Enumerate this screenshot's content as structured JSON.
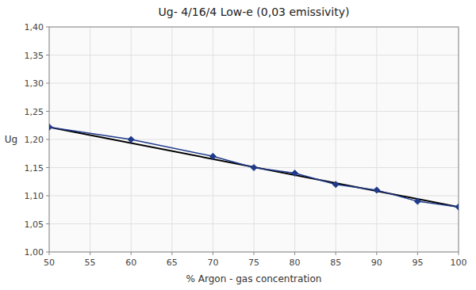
{
  "chart_data": {
    "type": "line",
    "title": "Ug- 4/16/4 Low-e (0,03 emissivity)",
    "xlabel": "% Argon - gas concentration",
    "ylabel": "Ug",
    "xlim": [
      50,
      100
    ],
    "ylim": [
      1.0,
      1.4
    ],
    "xticks": [
      50,
      55,
      60,
      65,
      70,
      75,
      80,
      85,
      90,
      95,
      100
    ],
    "yticks": [
      {
        "value": 1.0,
        "label": "1,00"
      },
      {
        "value": 1.05,
        "label": "1,05"
      },
      {
        "value": 1.1,
        "label": "1,10"
      },
      {
        "value": 1.15,
        "label": "1,15"
      },
      {
        "value": 1.2,
        "label": "1,20"
      },
      {
        "value": 1.25,
        "label": "1,25"
      },
      {
        "value": 1.3,
        "label": "1,30"
      },
      {
        "value": 1.35,
        "label": "1,35"
      },
      {
        "value": 1.4,
        "label": "1,40"
      }
    ],
    "grid": true,
    "series": [
      {
        "x": [
          50,
          60,
          70,
          75,
          80,
          85,
          90,
          95,
          100
        ],
        "values": [
          1.222,
          1.2,
          1.17,
          1.15,
          1.14,
          1.12,
          1.11,
          1.09,
          1.08
        ],
        "color": "#1f3a8a",
        "marker": "diamond"
      },
      {
        "x": [
          50,
          100
        ],
        "values": [
          1.222,
          1.08
        ],
        "color": "#000000"
      }
    ]
  }
}
